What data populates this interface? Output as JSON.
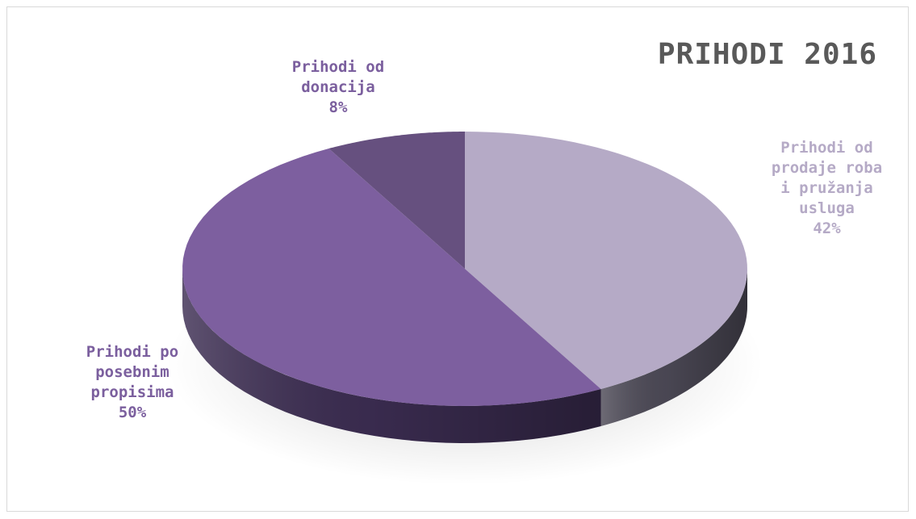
{
  "chart_data": {
    "type": "pie",
    "title": "PRIHODI 2016",
    "slices": [
      {
        "label_lines": [
          "Prihodi od",
          "prodaje roba",
          "i pružanja",
          "usluga"
        ],
        "percent_text": "42%",
        "value": 42,
        "color": "#b5aac6",
        "dark": "#4d4a57"
      },
      {
        "label_lines": [
          "Prihodi po",
          "posebnim",
          "propisima"
        ],
        "percent_text": "50%",
        "value": 50,
        "color": "#7d5f9f",
        "dark": "#3c2d52"
      },
      {
        "label_lines": [
          "Prihodi od",
          "donacija"
        ],
        "percent_text": "8%",
        "value": 8,
        "color": "#66507f",
        "dark": "#33283f"
      }
    ],
    "legend": "none",
    "grid": false
  }
}
